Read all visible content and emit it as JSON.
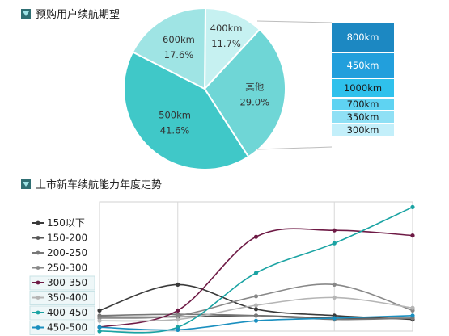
{
  "chart_data": [
    {
      "type": "pie",
      "title": "预购用户续航期望",
      "slices": [
        {
          "label": "400km",
          "pct": "11.7%",
          "value": 11.7,
          "color": "#c6f1f1"
        },
        {
          "label": "其他",
          "pct": "29.0%",
          "value": 29.0,
          "color": "#6fd6d6"
        },
        {
          "label": "500km",
          "pct": "41.6%",
          "value": 41.6,
          "color": "#40c8c8"
        },
        {
          "label": "600km",
          "pct": "17.6%",
          "value": 17.6,
          "color": "#9fe4e4"
        }
      ],
      "breakdown": [
        {
          "label": "800km",
          "color": "#1c88c2",
          "text_color": "#ffffff"
        },
        {
          "label": "450km",
          "color": "#229fdc",
          "text_color": "#ffffff"
        },
        {
          "label": "1000km",
          "color": "#2fc1ec",
          "text_color": "#1a1a1a"
        },
        {
          "label": "700km",
          "color": "#5fd3f2",
          "text_color": "#1a1a1a"
        },
        {
          "label": "350km",
          "color": "#8fe0f5",
          "text_color": "#1a1a1a"
        },
        {
          "label": "300km",
          "color": "#c3effa",
          "text_color": "#1a1a1a"
        }
      ]
    },
    {
      "type": "line",
      "title": "上市新车续航能力年度走势",
      "x": [
        0,
        1,
        2,
        3,
        4
      ],
      "ylim": [
        0,
        100
      ],
      "series": [
        {
          "name": "150以下",
          "color": "#3a3a3a",
          "values": [
            16,
            36,
            17,
            12,
            9
          ]
        },
        {
          "name": "150-200",
          "color": "#555555",
          "values": [
            11,
            11,
            12,
            10,
            10
          ]
        },
        {
          "name": "200-250",
          "color": "#777777",
          "values": [
            12,
            13,
            12,
            9,
            10
          ]
        },
        {
          "name": "250-300",
          "color": "#888888",
          "values": [
            10,
            12,
            27,
            36,
            16
          ]
        },
        {
          "name": "300-350",
          "color": "#6e1a45",
          "values": [
            3,
            16,
            73,
            78,
            74
          ]
        },
        {
          "name": "350-400",
          "color": "#b5b5b5",
          "values": [
            8,
            9,
            20,
            26,
            18
          ]
        },
        {
          "name": "400-450",
          "color": "#1aa3a3",
          "values": [
            0,
            3,
            45,
            68,
            96
          ]
        },
        {
          "name": "450-500",
          "color": "#1a8fbf",
          "values": [
            3,
            1,
            8,
            10,
            12
          ]
        }
      ]
    }
  ]
}
